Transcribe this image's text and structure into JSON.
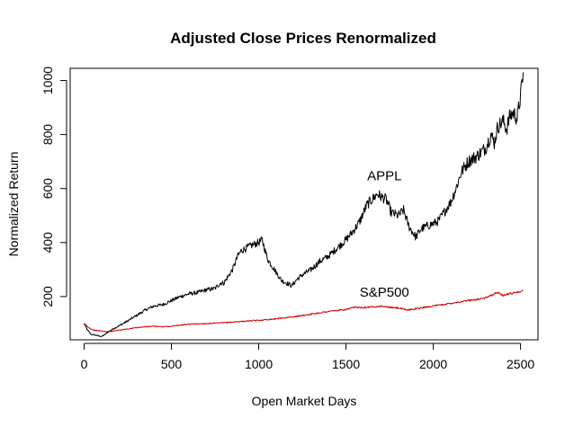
{
  "chart_data": {
    "type": "line",
    "title": "Adjusted Close Prices Renormalized",
    "xlabel": "Open Market Days",
    "ylabel": "Normalized Return",
    "xlim": [
      -80,
      2600
    ],
    "ylim": [
      40,
      1045
    ],
    "x_ticks": [
      0,
      500,
      1000,
      1500,
      2000,
      2500
    ],
    "x_tick_labels": [
      "0",
      "500",
      "1000",
      "1500",
      "2000",
      "2500"
    ],
    "y_ticks": [
      200,
      400,
      600,
      800,
      1000
    ],
    "y_tick_labels": [
      "200",
      "400",
      "600",
      "800",
      "1000"
    ],
    "grid": false,
    "legend": "none",
    "annotations": [
      {
        "text": "APPL",
        "x": 1720,
        "y": 630
      },
      {
        "text": "S&P500",
        "x": 1720,
        "y": 200
      }
    ],
    "series": [
      {
        "name": "APPL",
        "color": "#000000",
        "x": [
          0,
          20,
          40,
          60,
          80,
          100,
          120,
          140,
          160,
          200,
          250,
          300,
          350,
          400,
          450,
          500,
          550,
          600,
          650,
          700,
          750,
          780,
          800,
          850,
          880,
          900,
          930,
          960,
          1000,
          1020,
          1050,
          1100,
          1130,
          1160,
          1190,
          1220,
          1250,
          1300,
          1350,
          1400,
          1450,
          1500,
          1550,
          1580,
          1600,
          1620,
          1650,
          1680,
          1700,
          1730,
          1760,
          1800,
          1830,
          1860,
          1880,
          1900,
          1930,
          1960,
          2000,
          2030,
          2060,
          2100,
          2130,
          2160,
          2200,
          2250,
          2300,
          2330,
          2350,
          2370,
          2400,
          2420,
          2440,
          2460,
          2480,
          2500,
          2515
        ],
        "y": [
          100,
          75,
          60,
          58,
          55,
          52,
          60,
          70,
          78,
          92,
          110,
          130,
          150,
          165,
          170,
          185,
          200,
          210,
          215,
          225,
          230,
          250,
          250,
          300,
          350,
          370,
          380,
          390,
          400,
          410,
          340,
          290,
          260,
          250,
          240,
          265,
          280,
          300,
          330,
          350,
          380,
          410,
          450,
          480,
          510,
          540,
          560,
          580,
          570,
          560,
          510,
          500,
          520,
          460,
          440,
          420,
          450,
          460,
          470,
          480,
          510,
          550,
          600,
          660,
          700,
          720,
          750,
          800,
          770,
          830,
          850,
          820,
          870,
          880,
          860,
          940,
          1030
        ]
      },
      {
        "name": "S&P500",
        "color": "#cc0000",
        "x": [
          0,
          20,
          40,
          60,
          80,
          100,
          130,
          160,
          200,
          250,
          300,
          350,
          400,
          450,
          500,
          600,
          700,
          800,
          900,
          1000,
          1100,
          1200,
          1300,
          1400,
          1500,
          1550,
          1600,
          1650,
          1700,
          1750,
          1800,
          1850,
          1900,
          1950,
          2000,
          2100,
          2200,
          2300,
          2350,
          2370,
          2400,
          2450,
          2515
        ],
        "y": [
          100,
          88,
          80,
          75,
          74,
          72,
          70,
          72,
          76,
          80,
          85,
          88,
          90,
          88,
          90,
          98,
          100,
          103,
          108,
          112,
          118,
          125,
          135,
          145,
          152,
          160,
          160,
          162,
          165,
          160,
          158,
          150,
          155,
          160,
          165,
          175,
          185,
          195,
          210,
          215,
          205,
          212,
          222
        ]
      }
    ]
  }
}
